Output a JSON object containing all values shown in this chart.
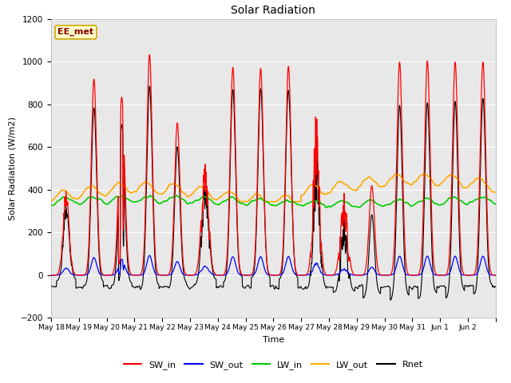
{
  "title": "Solar Radiation",
  "xlabel": "Time",
  "ylabel": "Solar Radiation (W/m2)",
  "ylim": [
    -200,
    1200
  ],
  "yticks": [
    -200,
    0,
    200,
    400,
    600,
    800,
    1000,
    1200
  ],
  "annotation_text": "EE_met",
  "annotation_bg": "#ffffcc",
  "annotation_border": "#ccaa00",
  "annotation_text_color": "#880000",
  "series_colors": {
    "SW_in": "#ff0000",
    "SW_out": "#0000ff",
    "LW_in": "#00cc00",
    "LW_out": "#ffaa00",
    "Rnet": "#000000"
  },
  "background_color": "#ffffff",
  "plot_bg_color": "#e8e8e8",
  "grid_color": "#ffffff",
  "n_days": 16,
  "dt_hours": 0.25,
  "x_tick_labels": [
    "May 18",
    "May 19",
    "May 20",
    "May 21",
    "May 22",
    "May 23",
    "May 24",
    "May 25",
    "May 26",
    "May 27",
    "May 28",
    "May 29",
    "May 30",
    "May 31",
    "Jun 1",
    "Jun 2"
  ]
}
